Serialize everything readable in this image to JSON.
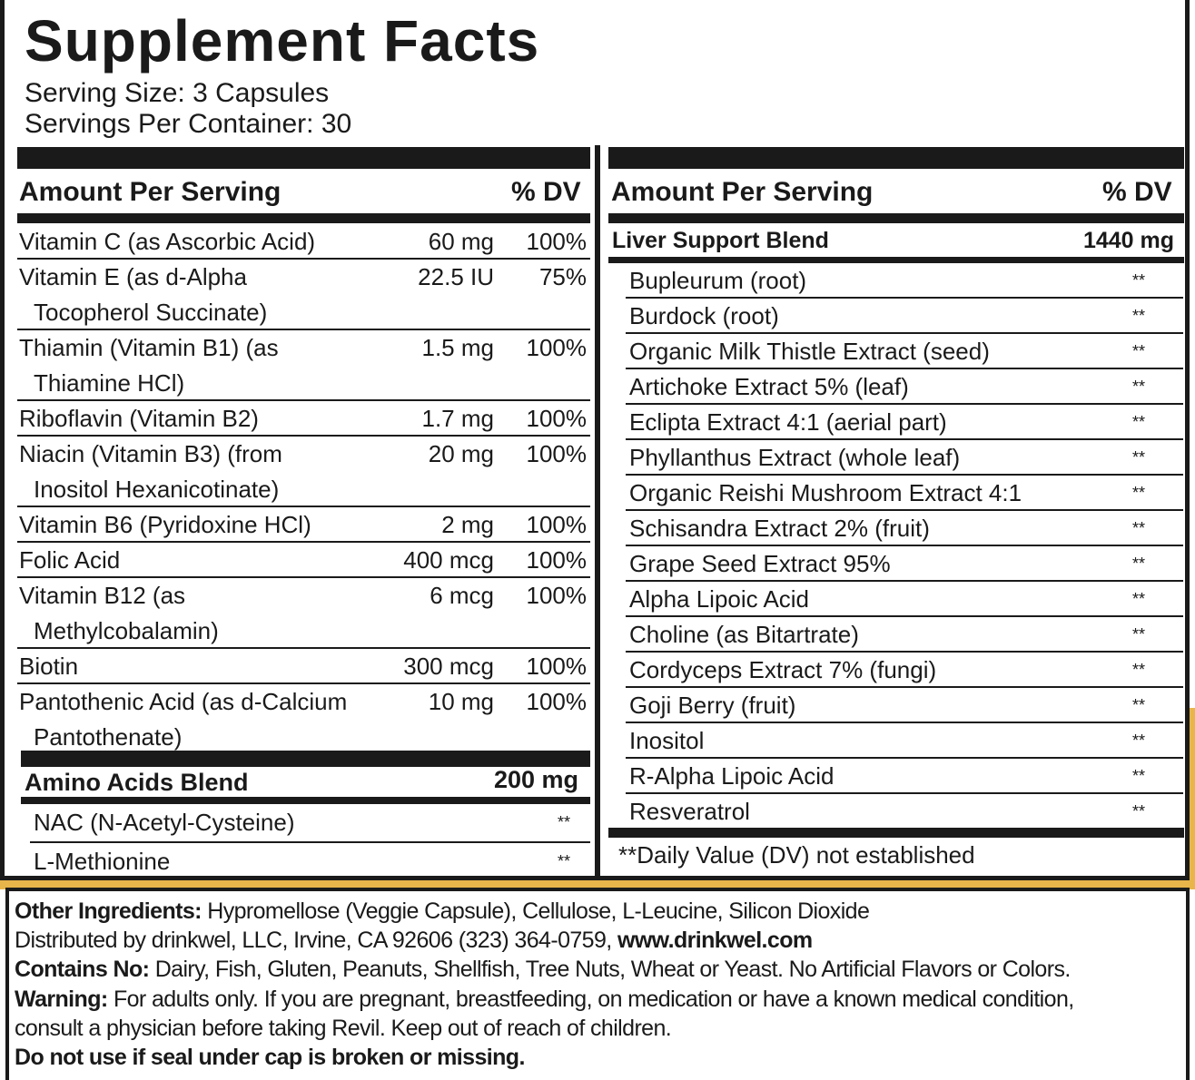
{
  "title": "Supplement Facts",
  "serving_size": "Serving Size: 3 Capsules",
  "servings_per_container": "Servings Per Container: 30",
  "left": {
    "header": {
      "amount": "Amount Per Serving",
      "dv": "% DV"
    },
    "rows": [
      {
        "name": "Vitamin C (as Ascorbic Acid)",
        "amount": "60 mg",
        "dv": "100%"
      },
      {
        "name": "Vitamin E (as d-Alpha",
        "name2": "Tocopherol Succinate)",
        "amount": "22.5 IU",
        "dv": "75%"
      },
      {
        "name": "Thiamin (Vitamin B1) (as",
        "name2": "Thiamine HCl)",
        "amount": "1.5 mg",
        "dv": "100%"
      },
      {
        "name": "Riboflavin (Vitamin B2)",
        "amount": "1.7 mg",
        "dv": "100%"
      },
      {
        "name": "Niacin (Vitamin B3) (from",
        "name2": "Inositol Hexanicotinate)",
        "amount": "20 mg",
        "dv": "100%"
      },
      {
        "name": "Vitamin B6 (Pyridoxine HCl)",
        "amount": "2 mg",
        "dv": "100%"
      },
      {
        "name": "Folic Acid",
        "amount": "400 mcg",
        "dv": "100%"
      },
      {
        "name": "Vitamin B12 (as",
        "name2": "Methylcobalamin)",
        "amount": "6 mcg",
        "dv": "100%"
      },
      {
        "name": "Biotin",
        "amount": "300 mcg",
        "dv": "100%"
      },
      {
        "name": "Pantothenic Acid (as d-Calcium",
        "name2": "Pantothenate)",
        "amount": "10 mg",
        "dv": "100%"
      }
    ],
    "blend": {
      "name": "Amino Acids Blend",
      "amount": "200 mg",
      "items": [
        {
          "name": "NAC (N-Acetyl-Cysteine)",
          "dv": "**"
        },
        {
          "name": "L-Methionine",
          "dv": "**"
        }
      ]
    }
  },
  "right": {
    "header": {
      "amount": "Amount Per Serving",
      "dv": "% DV"
    },
    "blend": {
      "name": "Liver Support Blend",
      "amount": "1440 mg",
      "items": [
        {
          "name": "Bupleurum (root)",
          "dv": "**"
        },
        {
          "name": "Burdock (root)",
          "dv": "**"
        },
        {
          "name": "Organic Milk Thistle Extract (seed)",
          "dv": "**"
        },
        {
          "name": "Artichoke Extract 5% (leaf)",
          "dv": "**"
        },
        {
          "name": "Eclipta Extract 4:1 (aerial part)",
          "dv": "**"
        },
        {
          "name": "Phyllanthus Extract (whole leaf)",
          "dv": "**"
        },
        {
          "name": "Organic Reishi Mushroom Extract 4:1",
          "dv": "**"
        },
        {
          "name": "Schisandra Extract 2% (fruit)",
          "dv": "**"
        },
        {
          "name": "Grape Seed Extract 95%",
          "dv": "**"
        },
        {
          "name": "Alpha Lipoic Acid",
          "dv": "**"
        },
        {
          "name": "Choline (as Bitartrate)",
          "dv": "**"
        },
        {
          "name": "Cordyceps Extract 7% (fungi)",
          "dv": "**"
        },
        {
          "name": "Goji Berry (fruit)",
          "dv": "**"
        },
        {
          "name": "Inositol",
          "dv": "**"
        },
        {
          "name": "R-Alpha Lipoic Acid",
          "dv": "**"
        },
        {
          "name": "Resveratrol",
          "dv": "**"
        }
      ]
    },
    "footnote": "**Daily Value (DV) not established"
  },
  "bottom": {
    "other_label": "Other Ingredients:",
    "other_text": " Hypromellose (Veggie Capsule), Cellulose, L-Leucine, Silicon Dioxide",
    "distributed": "Distributed by drinkwel, LLC, Irvine, CA 92606 (323) 364-0759, ",
    "website": "www.drinkwel.com",
    "contains_label": "Contains No:",
    "contains_text": " Dairy, Fish, Gluten, Peanuts, Shellfish, Tree Nuts, Wheat or Yeast. No Artificial Flavors or Colors. ",
    "warning_label": "Warning:",
    "warning_text": " For adults only. If you are pregnant, breastfeeding, on medication or have a known medical condition, consult a physician before taking Revil. Keep out of reach of children.",
    "seal": "Do not use if seal under cap is broken or missing."
  },
  "colors": {
    "ink": "#1a1a1a",
    "accent": "#e8b54a"
  }
}
